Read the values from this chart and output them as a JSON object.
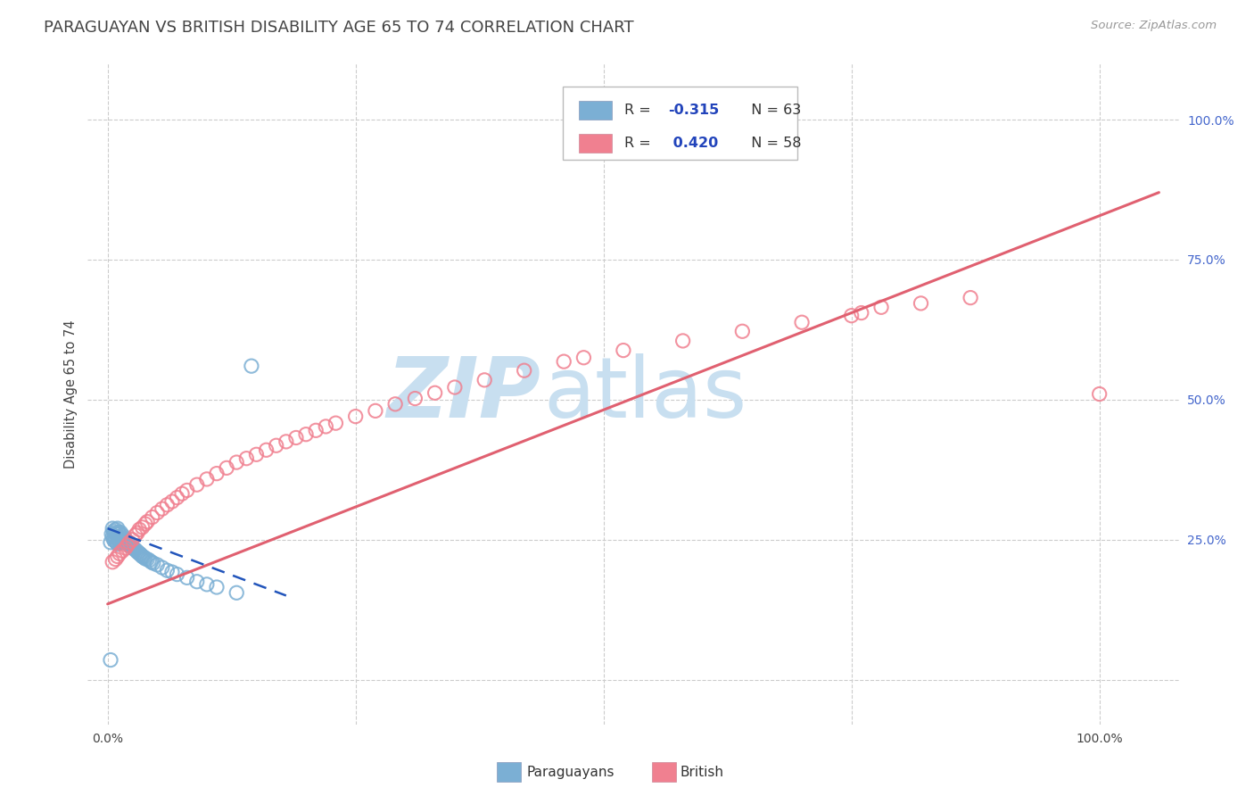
{
  "title": "PARAGUAYAN VS BRITISH DISABILITY AGE 65 TO 74 CORRELATION CHART",
  "source": "Source: ZipAtlas.com",
  "ylabel": "Disability Age 65 to 74",
  "paraguayan_color": "#7bafd4",
  "british_color": "#f08090",
  "trend_blue": "#2255bb",
  "trend_pink": "#e06070",
  "watermark_zip": "ZIP",
  "watermark_atlas": "atlas",
  "watermark_color_zip": "#c8dff0",
  "watermark_color_atlas": "#c8dff0",
  "background_color": "#ffffff",
  "grid_color": "#cccccc",
  "title_color": "#444444",
  "axis_label_color": "#4466cc",
  "xlim": [
    -0.02,
    1.08
  ],
  "ylim": [
    -0.08,
    1.1
  ],
  "par_x": [
    0.003,
    0.004,
    0.005,
    0.005,
    0.006,
    0.006,
    0.007,
    0.007,
    0.008,
    0.008,
    0.009,
    0.009,
    0.01,
    0.01,
    0.01,
    0.011,
    0.011,
    0.012,
    0.012,
    0.013,
    0.013,
    0.014,
    0.015,
    0.015,
    0.016,
    0.017,
    0.018,
    0.019,
    0.02,
    0.021,
    0.022,
    0.023,
    0.024,
    0.025,
    0.026,
    0.027,
    0.028,
    0.029,
    0.03,
    0.031,
    0.032,
    0.033,
    0.034,
    0.035,
    0.036,
    0.037,
    0.038,
    0.04,
    0.042,
    0.044,
    0.046,
    0.05,
    0.055,
    0.06,
    0.065,
    0.07,
    0.08,
    0.09,
    0.1,
    0.11,
    0.13,
    0.145,
    0.003
  ],
  "par_y": [
    0.245,
    0.26,
    0.255,
    0.27,
    0.25,
    0.265,
    0.248,
    0.262,
    0.252,
    0.268,
    0.245,
    0.26,
    0.242,
    0.255,
    0.27,
    0.248,
    0.263,
    0.245,
    0.26,
    0.248,
    0.263,
    0.25,
    0.245,
    0.258,
    0.248,
    0.252,
    0.25,
    0.248,
    0.245,
    0.242,
    0.24,
    0.238,
    0.238,
    0.236,
    0.235,
    0.233,
    0.232,
    0.23,
    0.228,
    0.227,
    0.225,
    0.224,
    0.222,
    0.22,
    0.219,
    0.218,
    0.216,
    0.215,
    0.213,
    0.21,
    0.208,
    0.205,
    0.2,
    0.195,
    0.192,
    0.188,
    0.182,
    0.175,
    0.17,
    0.165,
    0.155,
    0.56,
    0.035
  ],
  "brit_x": [
    0.005,
    0.008,
    0.01,
    0.012,
    0.015,
    0.018,
    0.02,
    0.022,
    0.025,
    0.028,
    0.03,
    0.032,
    0.035,
    0.038,
    0.04,
    0.045,
    0.05,
    0.055,
    0.06,
    0.065,
    0.07,
    0.075,
    0.08,
    0.09,
    0.1,
    0.11,
    0.12,
    0.13,
    0.14,
    0.15,
    0.16,
    0.17,
    0.18,
    0.19,
    0.2,
    0.21,
    0.22,
    0.23,
    0.25,
    0.27,
    0.29,
    0.31,
    0.33,
    0.35,
    0.38,
    0.42,
    0.46,
    0.48,
    0.52,
    0.58,
    0.64,
    0.7,
    0.75,
    0.76,
    0.78,
    0.82,
    0.87,
    1.0
  ],
  "brit_y": [
    0.21,
    0.215,
    0.22,
    0.225,
    0.23,
    0.235,
    0.24,
    0.245,
    0.25,
    0.258,
    0.262,
    0.268,
    0.272,
    0.278,
    0.282,
    0.29,
    0.298,
    0.305,
    0.312,
    0.318,
    0.325,
    0.332,
    0.338,
    0.348,
    0.358,
    0.368,
    0.378,
    0.388,
    0.395,
    0.402,
    0.41,
    0.418,
    0.425,
    0.432,
    0.438,
    0.445,
    0.452,
    0.458,
    0.47,
    0.48,
    0.492,
    0.502,
    0.512,
    0.522,
    0.535,
    0.552,
    0.568,
    0.575,
    0.588,
    0.605,
    0.622,
    0.638,
    0.65,
    0.655,
    0.665,
    0.672,
    0.682,
    0.51
  ],
  "par_trend_x": [
    0.0,
    0.18
  ],
  "par_trend_y": [
    0.27,
    0.15
  ],
  "brit_trend_x": [
    0.0,
    1.06
  ],
  "brit_trend_y": [
    0.135,
    0.87
  ]
}
